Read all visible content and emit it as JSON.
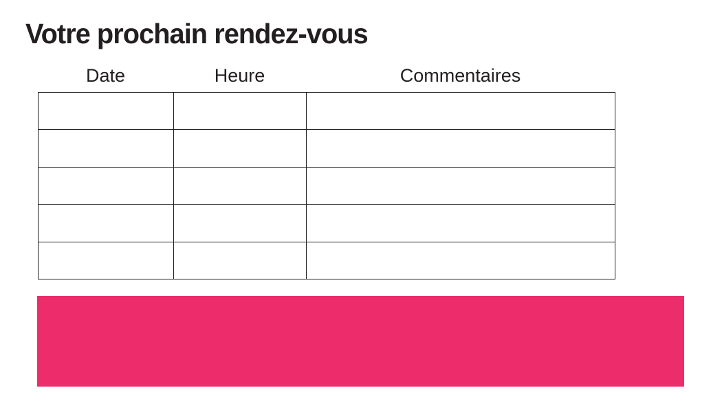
{
  "page": {
    "title": "Votre prochain rendez-vous"
  },
  "table": {
    "columns": [
      "Date",
      "Heure",
      "Commentaires"
    ],
    "rows": [
      [
        "",
        "",
        ""
      ],
      [
        "",
        "",
        ""
      ],
      [
        "",
        "",
        ""
      ],
      [
        "",
        "",
        ""
      ],
      [
        "",
        "",
        ""
      ]
    ]
  },
  "banner": {
    "text": "",
    "color": "#ED2D6B"
  },
  "colors": {
    "text": "#231F20",
    "table_border": "#231F20",
    "background": "#FFFFFF",
    "accent_pink": "#ED2D6B"
  }
}
